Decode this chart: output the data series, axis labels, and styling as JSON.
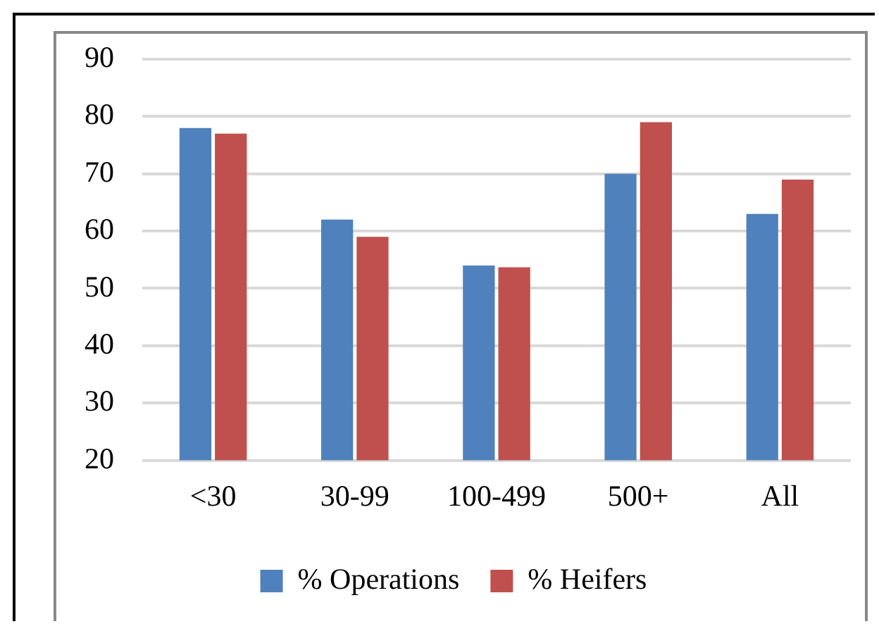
{
  "chart_data": {
    "type": "bar",
    "categories": [
      "<30",
      "30-99",
      "100-499",
      "500+",
      "All"
    ],
    "series": [
      {
        "name": "% Operations",
        "color": "#4f81bd",
        "values": [
          78,
          62,
          54,
          70,
          63
        ]
      },
      {
        "name": "% Heifers",
        "color": "#c0504d",
        "values": [
          77,
          59,
          53.7,
          79,
          69
        ]
      }
    ],
    "ylim": [
      20,
      90
    ],
    "yticks": [
      20,
      30,
      40,
      50,
      60,
      70,
      80,
      90
    ],
    "grid": "y",
    "legend": "bottom"
  }
}
